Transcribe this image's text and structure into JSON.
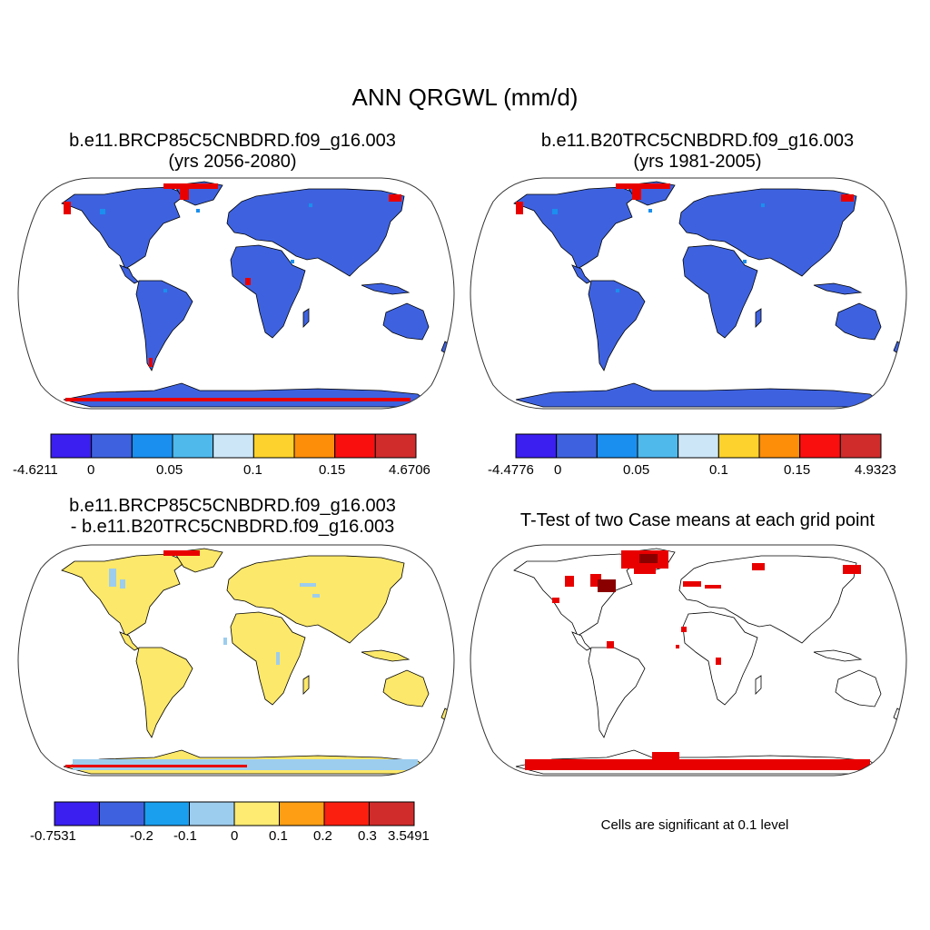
{
  "main_title": "ANN QRGWL (mm/d)",
  "panels": {
    "top_left": {
      "line1": "b.e11.BRCP85C5CNBDRD.f09_g16.003",
      "line2": "(yrs 2056-2080)"
    },
    "top_right": {
      "line1": "b.e11.B20TRC5CNBDRD.f09_g16.003",
      "line2": "(yrs 1981-2005)"
    },
    "bottom_left": {
      "line1": "b.e11.BRCP85C5CNBDRD.f09_g16.003",
      "line2": "- b.e11.B20TRC5CNBDRD.f09_g16.003"
    },
    "bottom_right": {
      "line1": "T-Test of two Case means at each grid point"
    }
  },
  "colorbars": {
    "top_left": {
      "colors": [
        "#3a1ff0",
        "#3e62df",
        "#1a8fef",
        "#4fb9ec",
        "#cde6f7",
        "#fdd22c",
        "#fd8e0a",
        "#fa0f0f",
        "#d02c2c"
      ],
      "labels": [
        "-4.6211",
        "0",
        "0.05",
        "0.1",
        "0.15",
        "4.6706"
      ]
    },
    "top_right": {
      "colors": [
        "#3a1ff0",
        "#3e62df",
        "#1a8fef",
        "#4fb9ec",
        "#cde6f7",
        "#fdd22c",
        "#fd8e0a",
        "#fa0f0f",
        "#d02c2c"
      ],
      "labels": [
        "-4.4776",
        "0",
        "0.05",
        "0.1",
        "0.15",
        "4.9323"
      ]
    },
    "bottom_left": {
      "colors": [
        "#3a1ff0",
        "#3e62df",
        "#1a9fef",
        "#9dcdee",
        "#fdeb72",
        "#fd9e14",
        "#fa1f0f",
        "#d02c2c"
      ],
      "labels": [
        "-0.7531",
        "-0.2",
        "-0.1",
        "0",
        "0.1",
        "0.2",
        "0.3",
        "3.5491"
      ]
    }
  },
  "map_fills": {
    "top_left": "#3e62df",
    "top_right": "#3e62df",
    "bottom_left": "#fce86a",
    "bottom_right": "#ffffff"
  },
  "significance_note": "Cells are significant at 0.1 level",
  "accent_colors": {
    "significant": "#e80000",
    "dark_red": "#8a0000",
    "blue_patch": "#1a8fef"
  }
}
